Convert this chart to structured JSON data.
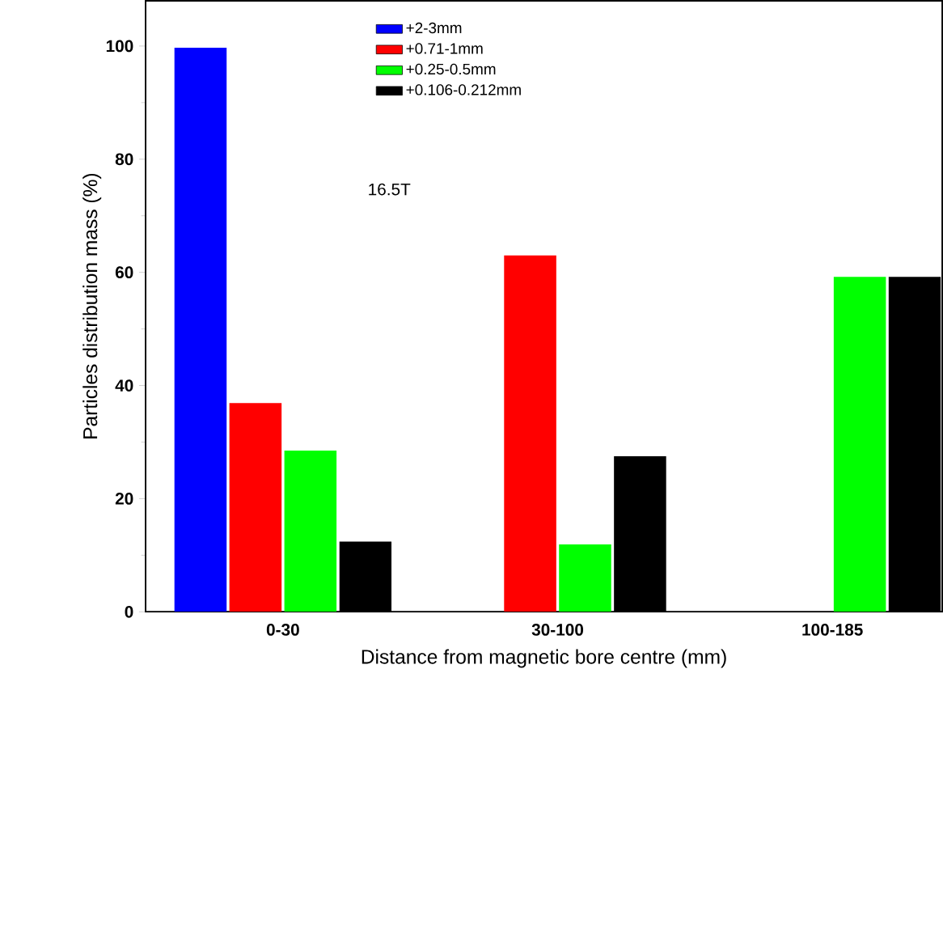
{
  "chart_data": {
    "type": "bar",
    "xlabel": "Distance from magnetic bore centre (mm)",
    "ylabel": "Particles distribution mass (%)",
    "categories": [
      "0-30",
      "30-100",
      "100-185"
    ],
    "series": [
      {
        "name": "+2-3mm",
        "color": "#0000ff",
        "values": [
          99.7,
          null,
          null
        ]
      },
      {
        "name": "+0.71-1mm",
        "color": "#ff0000",
        "values": [
          36.9,
          63.0,
          null
        ]
      },
      {
        "name": "+0.25-0.5mm",
        "color": "#00ff00",
        "values": [
          28.5,
          11.9,
          59.2
        ]
      },
      {
        "name": "+0.106-0.212mm",
        "color": "#000000",
        "values": [
          12.4,
          27.5,
          59.2
        ]
      }
    ],
    "ylim": [
      0,
      108
    ],
    "yticks": [
      0,
      20,
      40,
      60,
      80,
      100
    ],
    "legend": "top",
    "annotations": [
      "16.5T"
    ]
  }
}
